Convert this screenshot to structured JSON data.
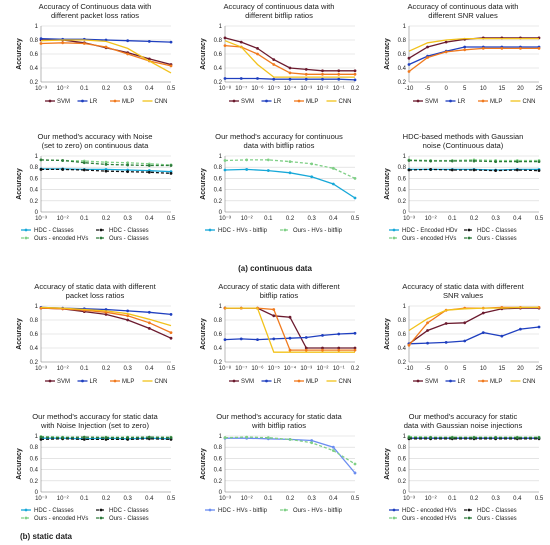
{
  "sections": [
    {
      "label": "(a) continuous data"
    },
    {
      "label": "(b) static data"
    }
  ],
  "chart_data": [
    {
      "type": "line",
      "title": [
        "Accuracy of Continuous data with",
        "different packet loss ratios"
      ],
      "ylabel": "Accuracy",
      "ylim": [
        0.2,
        1.0
      ],
      "yticks": [
        0.2,
        0.4,
        0.6,
        0.8,
        1
      ],
      "categories": [
        "10⁻³",
        "10⁻²",
        "0.1",
        "0.2",
        "0.3",
        "0.4",
        "0.5"
      ],
      "series": [
        {
          "name": "SVM",
          "color": "#6b1a2e",
          "marker": "dot",
          "dash": false,
          "values": [
            0.8,
            0.8,
            0.76,
            0.69,
            0.62,
            0.53,
            0.45
          ]
        },
        {
          "name": "LR",
          "color": "#1f3fbf",
          "marker": "dot",
          "dash": false,
          "values": [
            0.82,
            0.81,
            0.81,
            0.8,
            0.79,
            0.78,
            0.77
          ]
        },
        {
          "name": "MLP",
          "color": "#f07a1e",
          "marker": "dot",
          "dash": false,
          "values": [
            0.75,
            0.76,
            0.75,
            0.7,
            0.6,
            0.5,
            0.43
          ]
        },
        {
          "name": "CNN",
          "color": "#f2c21b",
          "marker": "none",
          "dash": false,
          "values": [
            0.79,
            0.8,
            0.8,
            0.78,
            0.68,
            0.5,
            0.33
          ]
        }
      ],
      "legend": "bottom"
    },
    {
      "type": "line",
      "title": [
        "Accuracy of continuous data with",
        "different bitflip ratios"
      ],
      "ylabel": "Accuracy",
      "ylim": [
        0.2,
        1.0
      ],
      "yticks": [
        0.2,
        0.4,
        0.6,
        0.8,
        1
      ],
      "categories": [
        "10⁻⁸",
        "10⁻⁷",
        "10⁻⁶",
        "10⁻⁵",
        "10⁻⁴",
        "10⁻³",
        "10⁻²",
        "10⁻¹",
        "0.2"
      ],
      "series": [
        {
          "name": "SVM",
          "color": "#6b1a2e",
          "marker": "dot",
          "dash": false,
          "values": [
            0.83,
            0.77,
            0.68,
            0.52,
            0.4,
            0.38,
            0.36,
            0.36,
            0.36
          ]
        },
        {
          "name": "LR",
          "color": "#1f3fbf",
          "marker": "dot",
          "dash": false,
          "values": [
            0.25,
            0.25,
            0.25,
            0.24,
            0.24,
            0.24,
            0.24,
            0.24,
            0.23
          ]
        },
        {
          "name": "MLP",
          "color": "#f07a1e",
          "marker": "dot",
          "dash": false,
          "values": [
            0.72,
            0.7,
            0.6,
            0.45,
            0.33,
            0.31,
            0.31,
            0.31,
            0.31
          ]
        },
        {
          "name": "CNN",
          "color": "#f2c21b",
          "marker": "none",
          "dash": false,
          "values": [
            0.79,
            0.7,
            0.45,
            0.27,
            0.27,
            0.27,
            0.27,
            0.27,
            0.27
          ]
        }
      ],
      "legend": "bottom"
    },
    {
      "type": "line",
      "title": [
        "Accuracy of continuous data with",
        "different SNR values"
      ],
      "ylabel": "Accuracy",
      "ylim": [
        0.2,
        1.0
      ],
      "yticks": [
        0.2,
        0.4,
        0.6,
        0.8,
        1
      ],
      "categories": [
        "-10",
        "-5",
        "0",
        "5",
        "10",
        "15",
        "20",
        "25"
      ],
      "series": [
        {
          "name": "SVM",
          "color": "#6b1a2e",
          "marker": "dot",
          "dash": false,
          "values": [
            0.54,
            0.7,
            0.77,
            0.81,
            0.83,
            0.83,
            0.83,
            0.83
          ]
        },
        {
          "name": "LR",
          "color": "#1f3fbf",
          "marker": "dot",
          "dash": false,
          "values": [
            0.45,
            0.57,
            0.64,
            0.7,
            0.7,
            0.7,
            0.7,
            0.7
          ]
        },
        {
          "name": "MLP",
          "color": "#f07a1e",
          "marker": "dot",
          "dash": false,
          "values": [
            0.35,
            0.55,
            0.63,
            0.66,
            0.68,
            0.68,
            0.68,
            0.68
          ]
        },
        {
          "name": "CNN",
          "color": "#f2c21b",
          "marker": "none",
          "dash": false,
          "values": [
            0.64,
            0.76,
            0.8,
            0.82,
            0.82,
            0.82,
            0.82,
            0.82
          ]
        }
      ],
      "legend": "bottom"
    },
    {
      "type": "line",
      "title": [
        "Our method's accuracy with Noise",
        "(set to zero) on continuous data"
      ],
      "ylabel": "Accuracy",
      "ylim": [
        0.0,
        1.0
      ],
      "yticks": [
        0,
        0.2,
        0.4,
        0.6,
        0.8,
        1
      ],
      "categories": [
        "10⁻³",
        "10⁻²",
        "0.1",
        "0.2",
        "0.3",
        "0.4",
        "0.5"
      ],
      "series": [
        {
          "name": "HDC - Classes",
          "color": "#17a8d8",
          "marker": "dot",
          "dash": false,
          "values": [
            0.77,
            0.77,
            0.76,
            0.76,
            0.75,
            0.74,
            0.72
          ]
        },
        {
          "name": "HDC - Classes",
          "color": "#111111",
          "marker": "dot",
          "dash": true,
          "values": [
            0.76,
            0.76,
            0.75,
            0.73,
            0.72,
            0.71,
            0.69
          ]
        },
        {
          "name": "Ours - encoded HVs",
          "color": "#7fcf86",
          "marker": "dot",
          "dash": true,
          "values": [
            0.93,
            0.92,
            0.91,
            0.89,
            0.88,
            0.86,
            0.84
          ]
        },
        {
          "name": "Ours - Classes",
          "color": "#2d7a3a",
          "marker": "dot",
          "dash": true,
          "values": [
            0.93,
            0.92,
            0.88,
            0.85,
            0.84,
            0.83,
            0.83
          ]
        }
      ],
      "legend": "bottom"
    },
    {
      "type": "line",
      "title": [
        "Our method's accuracy for continuous",
        "data with bitflip ratios"
      ],
      "ylabel": "Accuracy",
      "ylim": [
        0.0,
        1.0
      ],
      "yticks": [
        0,
        0.2,
        0.4,
        0.6,
        0.8,
        1
      ],
      "categories": [
        "10⁻³",
        "10⁻²",
        "0.1",
        "0.2",
        "0.3",
        "0.4",
        "0.5"
      ],
      "series": [
        {
          "name": "HDC - HVs - bitflip",
          "color": "#17a8d8",
          "marker": "dot",
          "dash": false,
          "values": [
            0.75,
            0.76,
            0.74,
            0.7,
            0.63,
            0.5,
            0.25
          ]
        },
        {
          "name": "Ours - HVs - bitflip",
          "color": "#7fcf86",
          "marker": "dot",
          "dash": true,
          "values": [
            0.92,
            0.93,
            0.93,
            0.9,
            0.86,
            0.78,
            0.6
          ]
        }
      ],
      "legend": "bottom"
    },
    {
      "type": "line",
      "title": [
        "HDC-based methods with Gaussian",
        "noise (Continuous data)"
      ],
      "ylabel": "Accuracy",
      "ylim": [
        0.0,
        1.0
      ],
      "yticks": [
        0,
        0.2,
        0.4,
        0.6,
        0.8,
        1
      ],
      "categories": [
        "10⁻³",
        "10⁻²",
        "0.1",
        "0.2",
        "0.3",
        "0.4",
        "0.5"
      ],
      "series": [
        {
          "name": "HDC - Encoded HDv",
          "color": "#17a8d8",
          "marker": "dot",
          "dash": false,
          "values": [
            0.76,
            0.76,
            0.76,
            0.76,
            0.75,
            0.76,
            0.76
          ]
        },
        {
          "name": "HDC - Classes",
          "color": "#111111",
          "marker": "dot",
          "dash": true,
          "values": [
            0.75,
            0.76,
            0.75,
            0.75,
            0.74,
            0.75,
            0.74
          ]
        },
        {
          "name": "Ours - encoded HVs",
          "color": "#7fcf86",
          "marker": "dot",
          "dash": true,
          "values": [
            0.93,
            0.92,
            0.92,
            0.93,
            0.92,
            0.92,
            0.92
          ]
        },
        {
          "name": "Ours - Classes",
          "color": "#2d7a3a",
          "marker": "dot",
          "dash": true,
          "values": [
            0.92,
            0.91,
            0.91,
            0.91,
            0.9,
            0.9,
            0.9
          ]
        }
      ],
      "legend": "bottom"
    },
    {
      "type": "line",
      "title": [
        "Accuracy of static data with different",
        "packet loss ratios"
      ],
      "ylabel": "Accuracy",
      "ylim": [
        0.2,
        1.0
      ],
      "yticks": [
        0.2,
        0.4,
        0.6,
        0.8,
        1
      ],
      "categories": [
        "10⁻³",
        "10⁻²",
        "0.1",
        "0.2",
        "0.3",
        "0.4",
        "0.5"
      ],
      "series": [
        {
          "name": "SVM",
          "color": "#6b1a2e",
          "marker": "dot",
          "dash": false,
          "values": [
            0.97,
            0.96,
            0.92,
            0.88,
            0.8,
            0.68,
            0.54
          ]
        },
        {
          "name": "LR",
          "color": "#1f3fbf",
          "marker": "dot",
          "dash": false,
          "values": [
            0.98,
            0.97,
            0.96,
            0.95,
            0.93,
            0.91,
            0.88
          ]
        },
        {
          "name": "MLP",
          "color": "#f07a1e",
          "marker": "dot",
          "dash": false,
          "values": [
            0.97,
            0.96,
            0.94,
            0.91,
            0.86,
            0.76,
            0.62
          ]
        },
        {
          "name": "CNN",
          "color": "#f2c21b",
          "marker": "none",
          "dash": false,
          "values": [
            0.98,
            0.97,
            0.95,
            0.93,
            0.89,
            0.81,
            0.72
          ]
        }
      ],
      "legend": "bottom"
    },
    {
      "type": "line",
      "title": [
        "Accuracy of static data with different",
        "bitflip ratios"
      ],
      "ylabel": "Accuracy",
      "ylim": [
        0.2,
        1.0
      ],
      "yticks": [
        0.2,
        0.4,
        0.6,
        0.8,
        1
      ],
      "categories": [
        "10⁻⁸",
        "10⁻⁷",
        "10⁻⁶",
        "10⁻⁵",
        "10⁻⁴",
        "10⁻³",
        "10⁻²",
        "10⁻¹",
        "0.2"
      ],
      "series": [
        {
          "name": "SVM",
          "color": "#6b1a2e",
          "marker": "dot",
          "dash": false,
          "values": [
            0.97,
            0.97,
            0.97,
            0.86,
            0.84,
            0.4,
            0.4,
            0.4,
            0.4
          ]
        },
        {
          "name": "LR",
          "color": "#1f3fbf",
          "marker": "dot",
          "dash": false,
          "values": [
            0.52,
            0.53,
            0.52,
            0.53,
            0.54,
            0.55,
            0.58,
            0.6,
            0.61
          ]
        },
        {
          "name": "MLP",
          "color": "#f07a1e",
          "marker": "dot",
          "dash": false,
          "values": [
            0.97,
            0.97,
            0.97,
            0.95,
            0.37,
            0.37,
            0.37,
            0.37,
            0.37
          ]
        },
        {
          "name": "CNN",
          "color": "#f2c21b",
          "marker": "none",
          "dash": false,
          "values": [
            0.97,
            0.97,
            0.97,
            0.34,
            0.34,
            0.34,
            0.34,
            0.34,
            0.34
          ]
        }
      ],
      "legend": "bottom"
    },
    {
      "type": "line",
      "title": [
        "Accuracy of static data with different",
        "SNR values"
      ],
      "ylabel": "Accuracy",
      "ylim": [
        0.2,
        1.0
      ],
      "yticks": [
        0.2,
        0.4,
        0.6,
        0.8,
        1
      ],
      "categories": [
        "-10",
        "-5",
        "0",
        "5",
        "10",
        "15",
        "20",
        "25"
      ],
      "series": [
        {
          "name": "SVM",
          "color": "#6b1a2e",
          "marker": "dot",
          "dash": false,
          "values": [
            0.46,
            0.65,
            0.75,
            0.76,
            0.9,
            0.96,
            0.97,
            0.97
          ]
        },
        {
          "name": "LR",
          "color": "#1f3fbf",
          "marker": "dot",
          "dash": false,
          "values": [
            0.46,
            0.47,
            0.48,
            0.5,
            0.62,
            0.57,
            0.67,
            0.7
          ]
        },
        {
          "name": "MLP",
          "color": "#f07a1e",
          "marker": "dot",
          "dash": false,
          "values": [
            0.44,
            0.76,
            0.94,
            0.97,
            0.97,
            0.98,
            0.98,
            0.98
          ]
        },
        {
          "name": "CNN",
          "color": "#f2c21b",
          "marker": "none",
          "dash": false,
          "values": [
            0.65,
            0.82,
            0.94,
            0.96,
            0.97,
            0.97,
            0.98,
            0.98
          ]
        }
      ],
      "legend": "bottom"
    },
    {
      "type": "line",
      "title": [
        "Our method's accuracy for static data",
        "with Noise Injection (set to zero)"
      ],
      "ylabel": "Accuracy",
      "ylim": [
        0.0,
        1.0
      ],
      "yticks": [
        0,
        0.2,
        0.4,
        0.6,
        0.8,
        1
      ],
      "categories": [
        "10⁻³",
        "10⁻²",
        "0.1",
        "0.2",
        "0.3",
        "0.4",
        "0.5"
      ],
      "series": [
        {
          "name": "HDC - Classes",
          "color": "#17a8d8",
          "marker": "dot",
          "dash": false,
          "values": [
            0.96,
            0.96,
            0.95,
            0.96,
            0.95,
            0.96,
            0.95
          ]
        },
        {
          "name": "HDC - Classes",
          "color": "#111111",
          "marker": "dot",
          "dash": true,
          "values": [
            0.94,
            0.95,
            0.94,
            0.94,
            0.94,
            0.95,
            0.94
          ]
        },
        {
          "name": "Ours - encoded HVs",
          "color": "#7fcf86",
          "marker": "dot",
          "dash": true,
          "values": [
            0.99,
            0.98,
            0.98,
            0.98,
            0.98,
            0.98,
            0.98
          ]
        },
        {
          "name": "Ours - Classes",
          "color": "#2d7a3a",
          "marker": "dot",
          "dash": true,
          "values": [
            0.98,
            0.97,
            0.98,
            0.97,
            0.97,
            0.98,
            0.97
          ]
        }
      ],
      "legend": "bottom"
    },
    {
      "type": "line",
      "title": [
        "Our method's accuracy for static data",
        "with bitflip ratios"
      ],
      "ylabel": "Accuracy",
      "ylim": [
        0.0,
        1.0
      ],
      "yticks": [
        0,
        0.2,
        0.4,
        0.6,
        0.8,
        1
      ],
      "categories": [
        "10⁻³",
        "10⁻²",
        "0.1",
        "0.2",
        "0.3",
        "0.4",
        "0.5"
      ],
      "series": [
        {
          "name": "HDC - HVs - bitflip",
          "color": "#6b8df0",
          "marker": "dot",
          "dash": false,
          "values": [
            0.96,
            0.96,
            0.95,
            0.94,
            0.92,
            0.8,
            0.34
          ]
        },
        {
          "name": "Ours - HVs - bitflip",
          "color": "#7fcf86",
          "marker": "dot",
          "dash": true,
          "values": [
            0.97,
            0.98,
            0.97,
            0.94,
            0.88,
            0.74,
            0.5
          ]
        }
      ],
      "legend": "bottom"
    },
    {
      "type": "line",
      "title": [
        "Our method's accuracy for static",
        "data with Gaussian noise injections"
      ],
      "ylabel": "Accuracy",
      "ylim": [
        0.0,
        1.0
      ],
      "yticks": [
        0,
        0.2,
        0.4,
        0.6,
        0.8,
        1
      ],
      "categories": [
        "10⁻³",
        "10⁻²",
        "0.1",
        "0.2",
        "0.3",
        "0.4",
        "0.5"
      ],
      "series": [
        {
          "name": "HDC - encoded HVs",
          "color": "#1f3fbf",
          "marker": "dot",
          "dash": false,
          "values": [
            0.96,
            0.96,
            0.96,
            0.96,
            0.96,
            0.96,
            0.96
          ]
        },
        {
          "name": "HDC - Classes",
          "color": "#111111",
          "marker": "dot",
          "dash": true,
          "values": [
            0.95,
            0.95,
            0.95,
            0.95,
            0.95,
            0.95,
            0.95
          ]
        },
        {
          "name": "Ours - encoded HVs",
          "color": "#7fcf86",
          "marker": "dot",
          "dash": true,
          "values": [
            0.99,
            0.98,
            0.98,
            0.98,
            0.98,
            0.98,
            0.98
          ]
        },
        {
          "name": "Ours - Classes",
          "color": "#2d7a3a",
          "marker": "dot",
          "dash": true,
          "values": [
            0.97,
            0.97,
            0.97,
            0.97,
            0.97,
            0.97,
            0.97
          ]
        }
      ],
      "legend": "bottom"
    }
  ]
}
